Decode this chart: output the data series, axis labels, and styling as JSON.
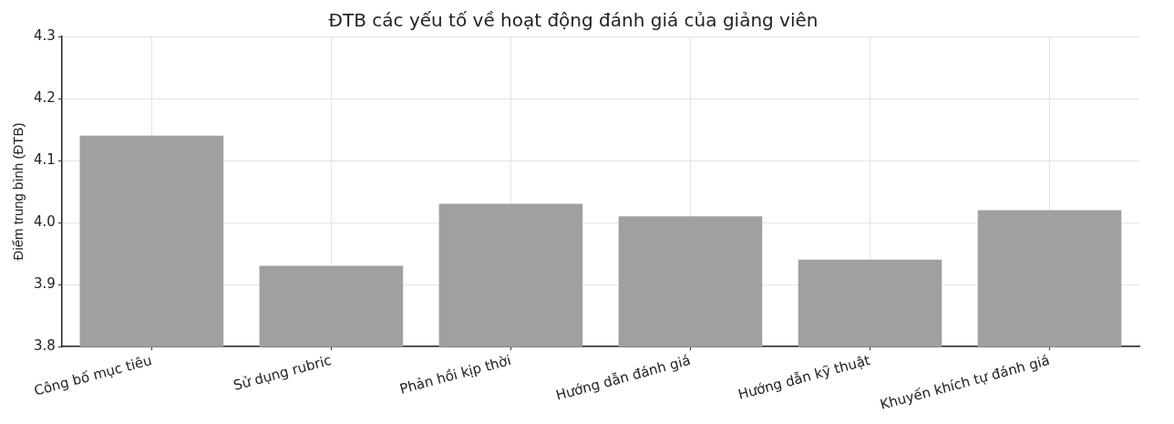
{
  "chart_data": {
    "type": "bar",
    "title": "ĐTB các yếu tố về hoạt động đánh giá của giảng viên",
    "ylabel": "Điểm trung bình (ĐTB)",
    "categories": [
      "Công bố mục tiêu",
      "Sử dụng rubric",
      "Phản hồi kịp thời",
      "Hướng dẫn đánh giá",
      "Hướng dẫn kỹ thuật",
      "Khuyến khích tự đánh giá"
    ],
    "values": [
      4.14,
      3.93,
      4.03,
      4.01,
      3.94,
      4.02
    ],
    "color": "#a0a0a0",
    "ylim": [
      3.8,
      4.3
    ],
    "yticks": [
      3.8,
      3.9,
      {
        "value": 4,
        "label": "4.0"
      },
      4.1,
      4.2,
      4.3
    ],
    "grid": true,
    "legend": false
  }
}
